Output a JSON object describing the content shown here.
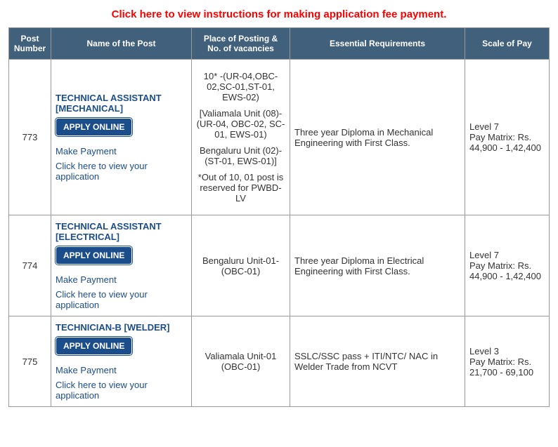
{
  "instructions_link": "Click here to view instructions for making application fee payment.",
  "columns": {
    "post_number": "Post Number",
    "name": "Name of the Post",
    "place": "Place of Posting & No. of vacancies",
    "req": "Essential Requirements",
    "pay": "Scale of Pay"
  },
  "common": {
    "apply_label": "APPLY ONLINE",
    "payment_label": "Make Payment",
    "view_app_label": "Click here to view your application"
  },
  "rows": [
    {
      "number": "773",
      "name": "TECHNICAL ASSISTANT [MECHANICAL]",
      "place": [
        "10* -(UR-04,OBC-02,SC-01,ST-01, EWS-02)",
        "[Valiamala Unit (08)- (UR-04, OBC-02, SC-01, EWS-01)",
        "Bengaluru Unit (02)- (ST-01, EWS-01)]",
        "*Out of 10, 01 post is reserved for PWBD-LV"
      ],
      "req": "Three year Diploma in Mechanical Engineering with First Class.",
      "pay": "Level 7\nPay Matrix: Rs. 44,900 - 1,42,400"
    },
    {
      "number": "774",
      "name": "TECHNICAL ASSISTANT [ELECTRICAL]",
      "place": [
        "Bengaluru Unit-01-(OBC-01)"
      ],
      "req": "Three year Diploma in Electrical Engineering with First Class.",
      "pay": "Level 7\nPay Matrix: Rs. 44,900 - 1,42,400"
    },
    {
      "number": "775",
      "name": "TECHNICIAN-B [WELDER]",
      "place": [
        "Valiamala Unit-01 (OBC-01)"
      ],
      "req": "SSLC/SSC pass + ITI/NTC/ NAC in Welder Trade from NCVT",
      "pay": "Level 3\nPay Matrix: Rs. 21,700 - 69,100"
    }
  ]
}
